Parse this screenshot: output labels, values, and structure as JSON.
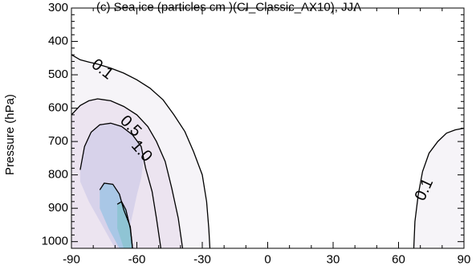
{
  "chart_data": {
    "type": "contour",
    "title": "(c) Sea ice (particles cm    )(CI_Classic_AX10), JJA",
    "xlabel": "",
    "ylabel": "Pressure (hPa)",
    "xlim": [
      -90,
      90
    ],
    "ylim": [
      1020,
      300
    ],
    "x_ticks": [
      -90,
      -60,
      -30,
      0,
      30,
      60,
      90
    ],
    "x_tick_labels": [
      "-90",
      "-60",
      "-30",
      "0",
      "30",
      "60",
      "90"
    ],
    "y_ticks": [
      300,
      400,
      500,
      600,
      700,
      800,
      900,
      1000
    ],
    "y_tick_labels": [
      "300",
      "400",
      "500",
      "600",
      "700",
      "800",
      "900",
      "1000"
    ],
    "contour_levels": [
      0.1,
      0.5,
      1.0
    ],
    "contour_labels": [
      {
        "text": "0.1",
        "x": -76,
        "y": 485
      },
      {
        "text": "0.5",
        "x": -63,
        "y": 655
      },
      {
        "text": "1.0",
        "x": -58,
        "y": 730
      },
      {
        "text": "0.1",
        "x": 72,
        "y": 845
      }
    ],
    "fill_colors": {
      "very_low": "#f6f4f8",
      "low": "#ece4f0",
      "mid": "#c6c3e6",
      "high": "#a9c7e6",
      "peak": "#8fc4d4"
    }
  }
}
